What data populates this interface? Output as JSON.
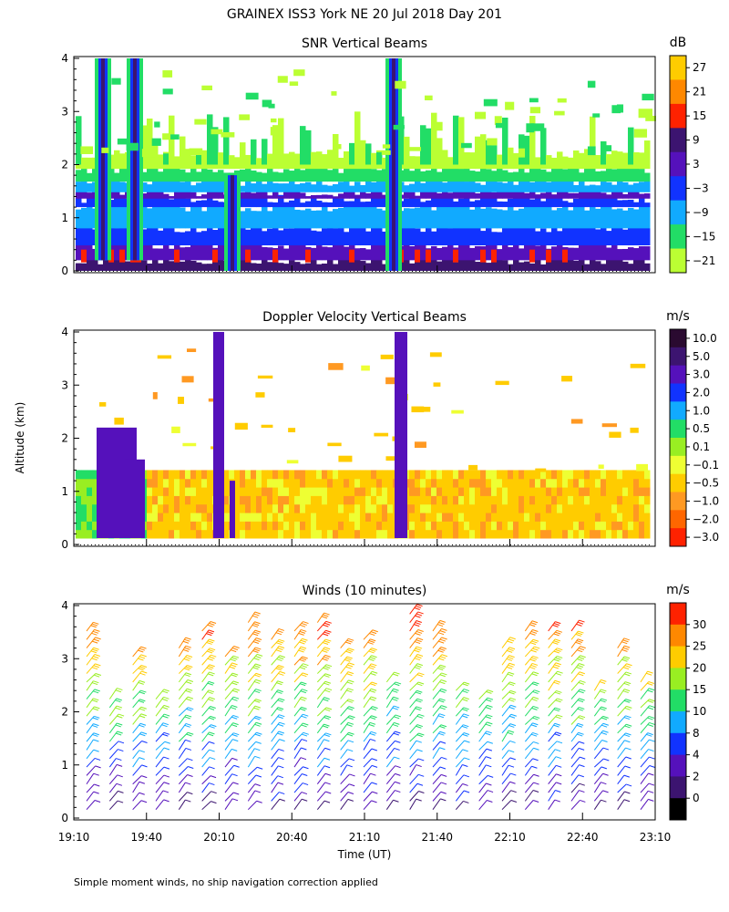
{
  "figure": {
    "title": "GRAINEX ISS3 York NE  20 Jul 2018 Day 201",
    "ylabel": "Altitude (km)",
    "xlabel": "Time (UT)",
    "footnote": "Simple moment winds, no ship navigation correction applied"
  },
  "chart_data": [
    {
      "type": "heatmap",
      "title": "SNR Vertical Beams",
      "ylim": [
        0,
        4
      ],
      "yticks": [
        "0",
        "1",
        "2",
        "3",
        "4"
      ],
      "colorbar": {
        "unit": "dB",
        "labels": [
          "27",
          "21",
          "15",
          "9",
          "3",
          "−3",
          "−9",
          "−15",
          "−21"
        ],
        "colors": [
          "#ffcc00",
          "#ff8800",
          "#ff2200",
          "#3c1470",
          "#5511bb",
          "#1133ff",
          "#11aaff",
          "#22dd66",
          "#bbff33"
        ]
      }
    },
    {
      "type": "heatmap",
      "title": "Doppler Velocity Vertical Beams",
      "ylim": [
        0,
        4
      ],
      "yticks": [
        "0",
        "1",
        "2",
        "3",
        "4"
      ],
      "colorbar": {
        "unit": "m/s",
        "labels": [
          "10.0",
          "5.0",
          "3.0",
          "2.0",
          "1.0",
          "0.5",
          "0.1",
          "−0.1",
          "−0.5",
          "−1.0",
          "−2.0",
          "−3.0"
        ],
        "colors": [
          "#2a0a30",
          "#3c1470",
          "#5511bb",
          "#1133ff",
          "#11aaff",
          "#22dd66",
          "#99ee22",
          "#eeff33",
          "#ffcc00",
          "#ff9922",
          "#ff6600",
          "#ff2200"
        ]
      }
    },
    {
      "type": "scatter",
      "title": "Winds (10 minutes)",
      "ylim": [
        0,
        4
      ],
      "yticks": [
        "0",
        "1",
        "2",
        "3",
        "4"
      ],
      "xticks": [
        "19:10",
        "19:40",
        "20:10",
        "20:40",
        "21:10",
        "21:40",
        "22:10",
        "22:40",
        "23:10"
      ],
      "colorbar": {
        "unit": "m/s",
        "labels": [
          "30",
          "25",
          "20",
          "15",
          "10",
          "8",
          "4",
          "2",
          "0"
        ],
        "colors": [
          "#ff2200",
          "#ff8800",
          "#ffcc00",
          "#99ee22",
          "#22dd66",
          "#11aaff",
          "#1133ff",
          "#5511bb",
          "#3c1470",
          "#000000"
        ]
      }
    }
  ]
}
